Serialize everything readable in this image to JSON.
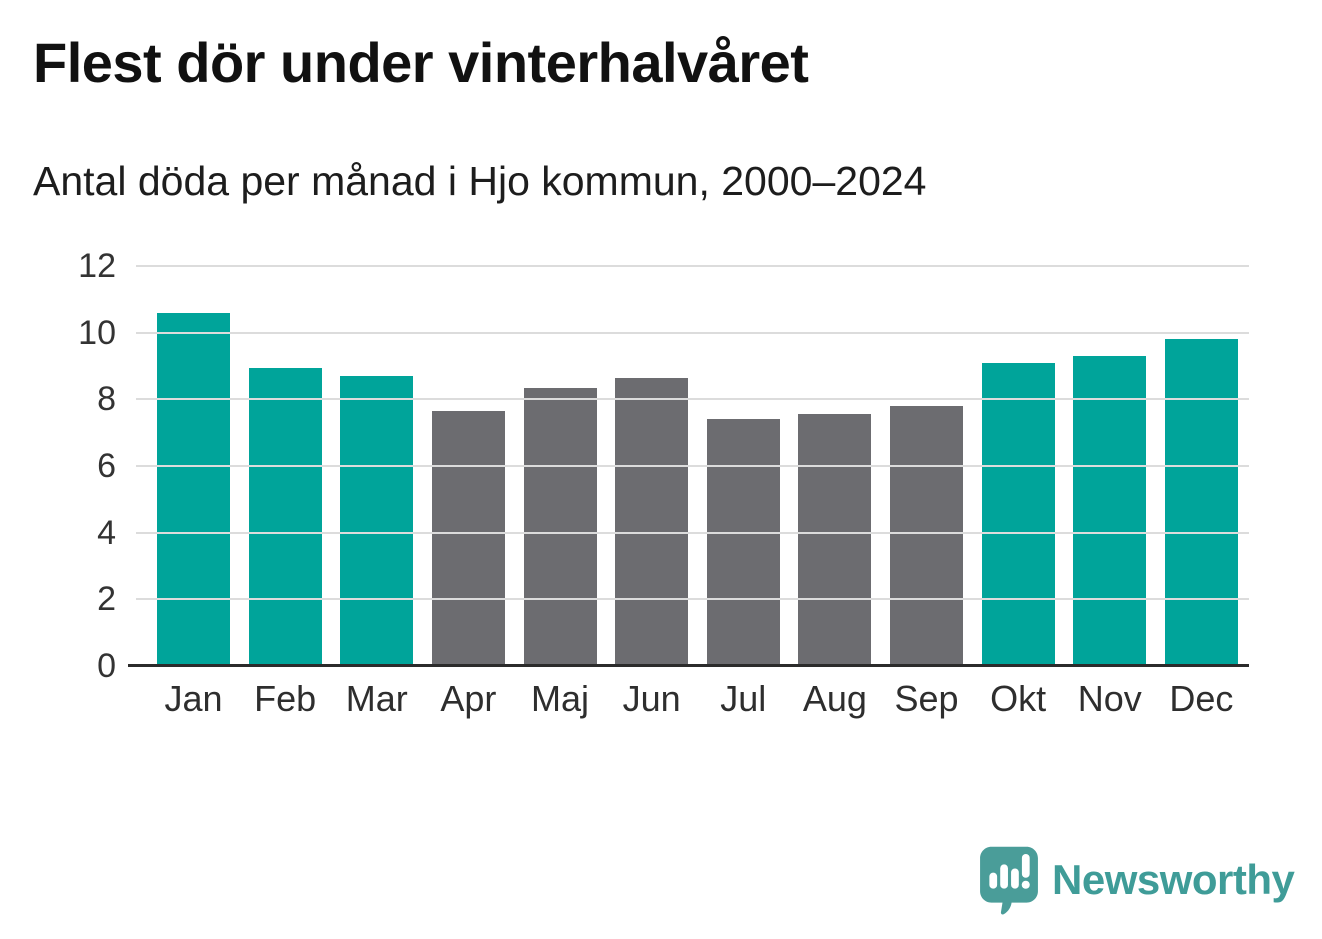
{
  "chart": {
    "title": "Flest dör under vinterhalvåret",
    "subtitle": "Antal döda per månad i Hjo kommun, 2000–2024"
  },
  "chart_data": {
    "type": "bar",
    "categories": [
      "Jan",
      "Feb",
      "Mar",
      "Apr",
      "Maj",
      "Jun",
      "Jul",
      "Aug",
      "Sep",
      "Okt",
      "Nov",
      "Dec"
    ],
    "values": [
      10.6,
      8.95,
      8.7,
      7.65,
      8.35,
      8.65,
      7.4,
      7.55,
      7.8,
      9.1,
      9.3,
      9.8
    ],
    "highlighted": [
      true,
      true,
      true,
      false,
      false,
      false,
      false,
      false,
      false,
      true,
      true,
      true
    ],
    "title": "Flest dör under vinterhalvåret",
    "subtitle": "Antal döda per månad i Hjo kommun, 2000–2024",
    "xlabel": "",
    "ylabel": "",
    "ylim": [
      0,
      12
    ],
    "yticks": [
      0,
      2,
      4,
      6,
      8,
      10,
      12
    ],
    "grid": true,
    "legend": "none",
    "colors": {
      "highlight": "#00a49a",
      "default": "#6c6c70",
      "gridline": "#dcdcdc",
      "axis": "#2b2b2b"
    }
  },
  "footer": {
    "brand": "Newsworthy",
    "brand_color": "#3f9c98",
    "logo_icon": "speech-bubble-bar-chart-exclamation"
  }
}
